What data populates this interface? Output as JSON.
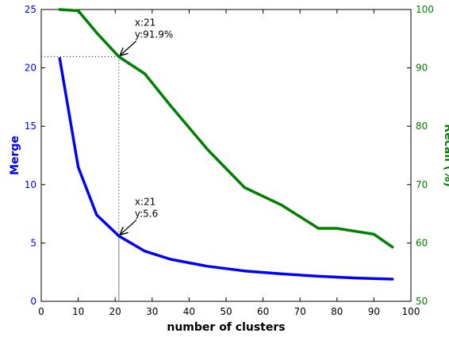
{
  "chart_data": {
    "type": "line",
    "xlabel": "number of clusters",
    "xlim": [
      0,
      100
    ],
    "xticks": [
      0,
      10,
      20,
      30,
      40,
      50,
      60,
      70,
      80,
      90,
      100
    ],
    "y_left": {
      "label": "Merge",
      "lim": [
        0,
        25
      ],
      "ticks": [
        0,
        5,
        10,
        15,
        20,
        25
      ],
      "color": "#0000ff"
    },
    "y_right": {
      "label": "Recall (%)",
      "lim": [
        50,
        100
      ],
      "ticks": [
        50,
        60,
        70,
        80,
        90,
        100
      ],
      "color": "#008000"
    },
    "series": [
      {
        "axis": "left",
        "color": "#0000ff",
        "points": [
          [
            5,
            20.8
          ],
          [
            10,
            11.5
          ],
          [
            15,
            7.4
          ],
          [
            21,
            5.6
          ],
          [
            28,
            4.3
          ],
          [
            35,
            3.6
          ],
          [
            45,
            3.0
          ],
          [
            55,
            2.6
          ],
          [
            65,
            2.35
          ],
          [
            75,
            2.15
          ],
          [
            85,
            2.0
          ],
          [
            95,
            1.9
          ]
        ]
      },
      {
        "axis": "right",
        "color": "#008000",
        "points": [
          [
            5,
            100
          ],
          [
            10,
            99.8
          ],
          [
            15,
            96
          ],
          [
            21,
            91.9
          ],
          [
            28,
            89
          ],
          [
            35,
            83.5
          ],
          [
            45,
            76
          ],
          [
            55,
            69.5
          ],
          [
            65,
            66.5
          ],
          [
            75,
            62.5
          ],
          [
            80,
            62.5
          ],
          [
            85,
            62
          ],
          [
            90,
            61.5
          ],
          [
            95,
            59.3
          ]
        ]
      }
    ],
    "annotations": [
      {
        "x_text": "x:21",
        "y_text": "y:91.9%",
        "x": 21,
        "y": 91.9,
        "axis": "right"
      },
      {
        "x_text": "x:21",
        "y_text": "y:5.6",
        "x": 21,
        "y": 5.6,
        "axis": "left"
      }
    ],
    "grid": false
  }
}
